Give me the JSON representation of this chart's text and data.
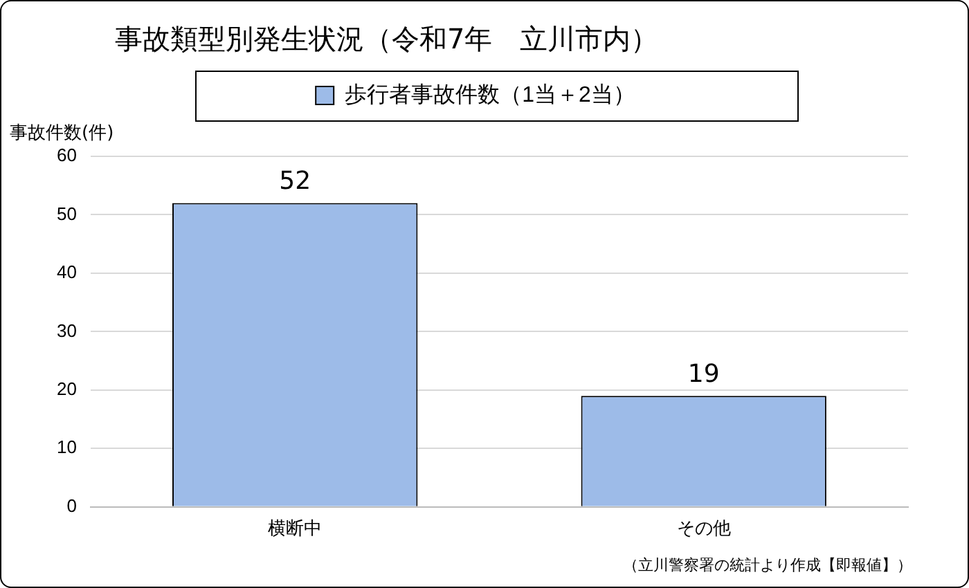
{
  "chart_data": {
    "type": "bar",
    "title": "事故類型別発生状況（令和7年　立川市内）",
    "ylabel": "事故件数(件)",
    "categories": [
      "横断中",
      "その他"
    ],
    "series": [
      {
        "name": "歩行者事故件数（1当＋2当）",
        "color": "#9dbbe8",
        "values": [
          52,
          19
        ]
      }
    ],
    "ylim": [
      0,
      60
    ],
    "yticks": [
      0,
      10,
      20,
      30,
      40,
      50,
      60
    ],
    "grid": "y",
    "legend": "top",
    "data_labels": true,
    "annotations": [
      "（立川警察署の統計より作成【即報値】）"
    ]
  }
}
